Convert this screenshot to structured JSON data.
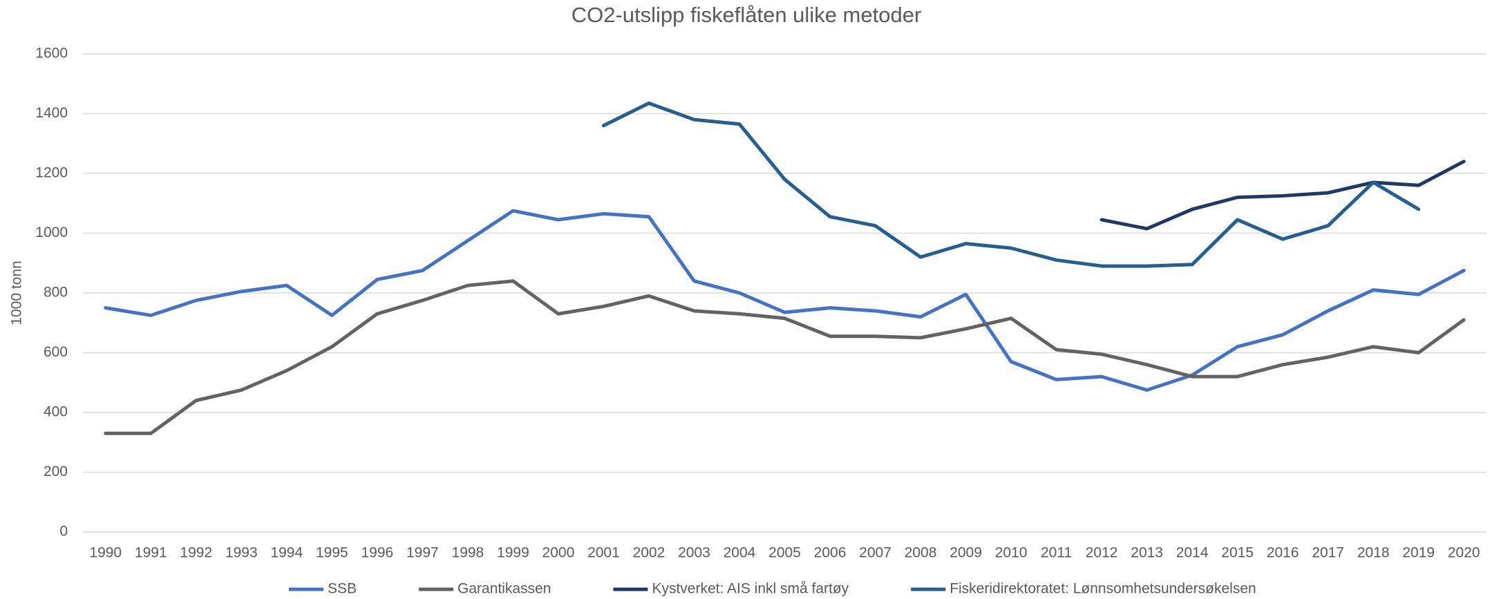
{
  "chart_data": {
    "type": "line",
    "title": "CO2-utslipp fiskeflåten ulike  metoder",
    "y_label": "1000 tonn",
    "categories": [
      "1990",
      "1991",
      "1992",
      "1993",
      "1994",
      "1995",
      "1996",
      "1997",
      "1998",
      "1999",
      "2000",
      "2001",
      "2002",
      "2003",
      "2004",
      "2005",
      "2006",
      "2007",
      "2008",
      "2009",
      "2010",
      "2011",
      "2012",
      "2013",
      "2014",
      "2015",
      "2016",
      "2017",
      "2018",
      "2019",
      "2020"
    ],
    "series": [
      {
        "name": "SSB",
        "color": "#4472c4",
        "values": [
          750,
          725,
          775,
          805,
          825,
          725,
          845,
          875,
          975,
          1075,
          1045,
          1065,
          1055,
          840,
          800,
          735,
          750,
          740,
          720,
          795,
          570,
          510,
          520,
          475,
          525,
          620,
          660,
          740,
          810,
          795,
          875
        ]
      },
      {
        "name": "Garantikassen",
        "color": "#636363",
        "values": [
          330,
          330,
          440,
          475,
          540,
          620,
          730,
          775,
          825,
          840,
          730,
          755,
          790,
          740,
          730,
          715,
          655,
          655,
          650,
          680,
          715,
          610,
          595,
          560,
          520,
          520,
          560,
          585,
          620,
          600,
          710
        ]
      },
      {
        "name": "Kystverket: AIS inkl små fartøy",
        "color": "#203864",
        "values": [
          null,
          null,
          null,
          null,
          null,
          null,
          null,
          null,
          null,
          null,
          null,
          null,
          null,
          null,
          null,
          null,
          null,
          null,
          null,
          null,
          null,
          null,
          1045,
          1015,
          1080,
          1120,
          1125,
          1135,
          1170,
          1160,
          1240
        ]
      },
      {
        "name": "Fiskeridirektoratet: Lønnsomhetsundersøkelsen",
        "color": "#255e91",
        "values": [
          null,
          null,
          null,
          null,
          null,
          null,
          null,
          null,
          null,
          null,
          null,
          1360,
          1435,
          1380,
          1365,
          1180,
          1055,
          1025,
          920,
          965,
          950,
          910,
          890,
          890,
          895,
          1045,
          980,
          1025,
          1170,
          1080,
          null
        ]
      }
    ],
    "ylim": [
      0,
      1600
    ],
    "yticks": [
      0,
      200,
      400,
      600,
      800,
      1000,
      1200,
      1400,
      1600
    ],
    "grid": true,
    "legend": "bottom"
  }
}
